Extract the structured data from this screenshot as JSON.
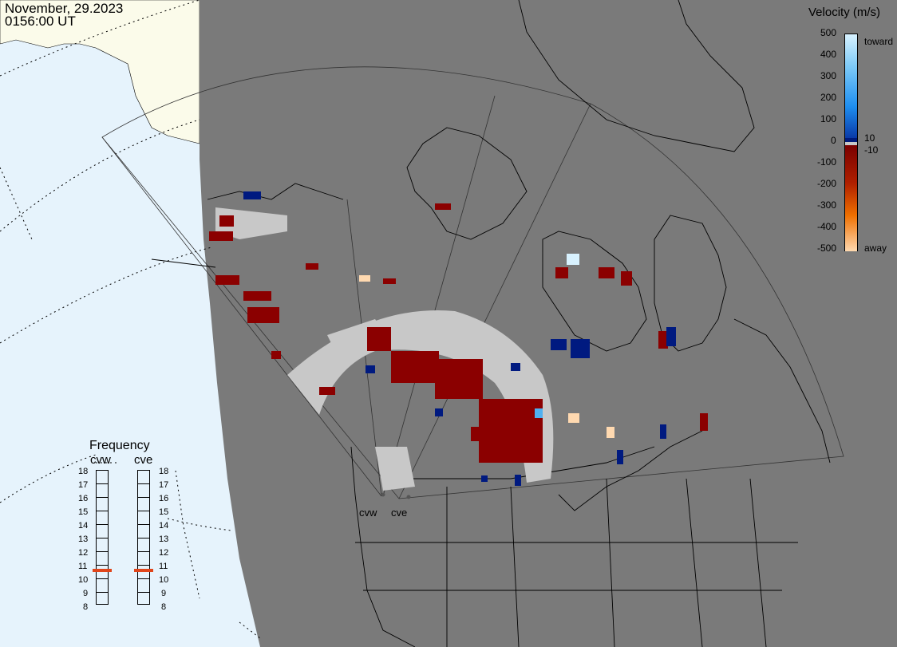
{
  "header": {
    "date": "November, 29.2023",
    "time": "0156:00 UT"
  },
  "velocity_legend": {
    "title": "Velocity (m/s)",
    "ticks": [
      "500",
      "400",
      "300",
      "200",
      "100",
      "0",
      "-100",
      "-200",
      "-300",
      "-400",
      "-500"
    ],
    "toward_label": "toward",
    "away_label": "away",
    "plus_threshold": "10",
    "minus_threshold": "-10",
    "colors": {
      "toward_max": "#d8f2ff",
      "toward_mid": "#1f8ff0",
      "toward_min": "#001a7a",
      "zero": "#c8c8c8",
      "away_min": "#7a0000",
      "away_mid": "#d94a00",
      "away_max": "#ffd9b0"
    }
  },
  "frequency_panel": {
    "title": "Frequency",
    "radars": [
      {
        "name": "cvw",
        "frequency": "11"
      },
      {
        "name": "cve",
        "frequency": "11"
      }
    ],
    "ticks": [
      "18",
      "17",
      "16",
      "15",
      "14",
      "13",
      "12",
      "11",
      "10",
      "9",
      "8"
    ],
    "selected_color": "#e0451a"
  },
  "map": {
    "radar_labels": [
      "cvw",
      "cve"
    ],
    "colors": {
      "ocean": "#e6f3fc",
      "land_outside": "#fbfbea",
      "night_shade": "#7a7a7a",
      "ground_scatter": "#c8c8c8",
      "away": "#8b0000",
      "toward": "#001a80"
    }
  }
}
